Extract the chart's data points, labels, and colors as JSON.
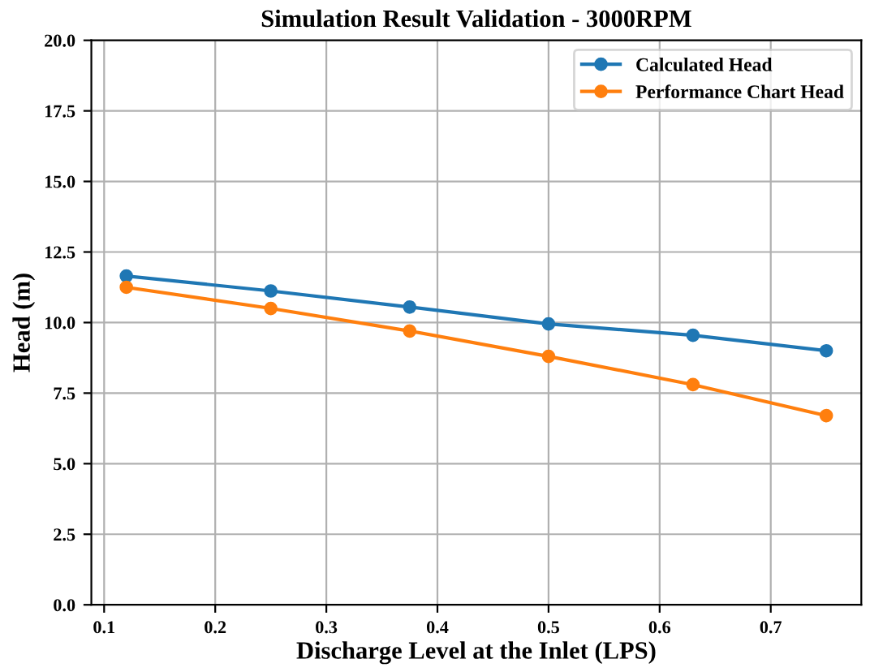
{
  "chart_data": {
    "type": "line",
    "title": "Simulation Result Validation - 3000RPM",
    "xlabel": "Discharge Level at the Inlet (LPS)",
    "ylabel": "Head (m)",
    "x": [
      0.12,
      0.25,
      0.375,
      0.5,
      0.63,
      0.75
    ],
    "series": [
      {
        "name": "Calculated Head",
        "color": "#1f77b4",
        "values": [
          11.65,
          11.12,
          10.55,
          9.95,
          9.55,
          9.0
        ]
      },
      {
        "name": "Performance Chart Head",
        "color": "#ff7f0e",
        "values": [
          11.25,
          10.5,
          9.7,
          8.8,
          7.8,
          6.7
        ]
      }
    ],
    "xlim": [
      0.0885,
      0.7815
    ],
    "xticks": [
      0.1,
      0.2,
      0.3,
      0.4,
      0.5,
      0.6,
      0.7
    ],
    "ylim": [
      0,
      20
    ],
    "yticks": [
      {
        "value": 0,
        "label": "0.0"
      },
      {
        "value": 2.5,
        "label": "2.5"
      },
      {
        "value": 5,
        "label": "5.0"
      },
      {
        "value": 7.5,
        "label": "7.5"
      },
      {
        "value": 10,
        "label": "10.0"
      },
      {
        "value": 12.5,
        "label": "12.5"
      },
      {
        "value": 15,
        "label": "15.0"
      },
      {
        "value": 17.5,
        "label": "17.5"
      },
      {
        "value": 20,
        "label": "20.0"
      }
    ],
    "grid": true,
    "legend": "top right",
    "marker": "circle",
    "line_style": "solid"
  }
}
